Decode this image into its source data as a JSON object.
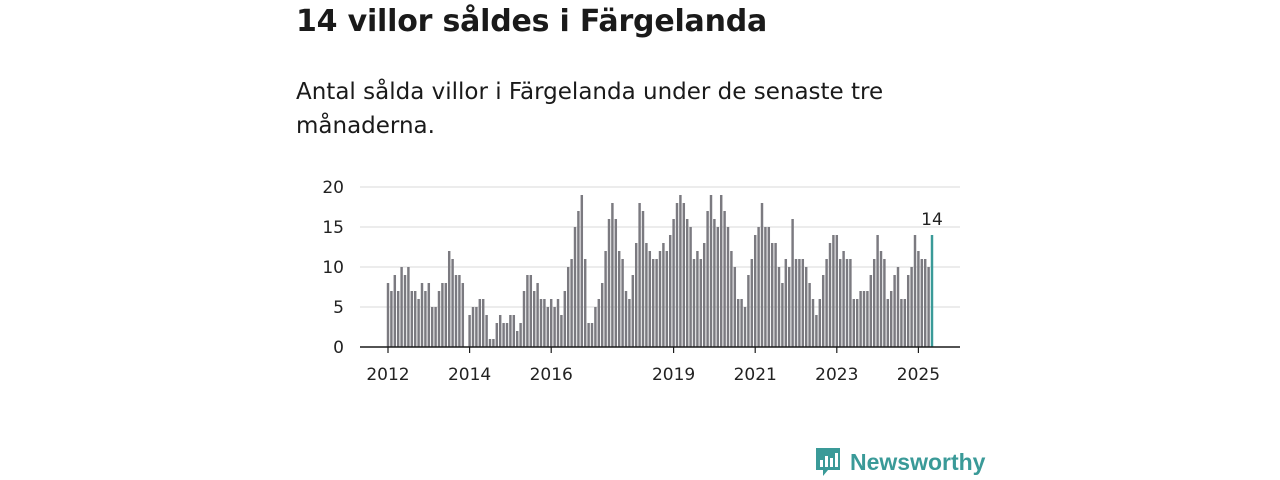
{
  "header": {
    "title": "14 villor såldes i Färgelanda",
    "subtitle": "Antal sålda villor i Färgelanda under de senaste tre månaderna."
  },
  "brand": {
    "name": "Newsworthy",
    "color": "#3a9a98"
  },
  "chart_data": {
    "type": "bar",
    "title": "14 villor såldes i Färgelanda",
    "ylabel": "",
    "xlabel": "",
    "ylim": [
      0,
      20
    ],
    "yticks": [
      0,
      5,
      10,
      15,
      20
    ],
    "xtick_labels": [
      {
        "label": "2012",
        "index": 0
      },
      {
        "label": "2014",
        "index": 24
      },
      {
        "label": "2016",
        "index": 48
      },
      {
        "label": "2019",
        "index": 84
      },
      {
        "label": "2021",
        "index": 108
      },
      {
        "label": "2023",
        "index": 132
      },
      {
        "label": "2025",
        "index": 156
      }
    ],
    "bar_color": "#7b7a80",
    "highlight_color": "#3a9a98",
    "highlight_label": "14",
    "values": [
      8,
      7,
      9,
      7,
      10,
      9,
      10,
      7,
      7,
      6,
      8,
      7,
      8,
      5,
      5,
      7,
      8,
      8,
      12,
      11,
      9,
      9,
      8,
      0,
      4,
      5,
      5,
      6,
      6,
      4,
      1,
      1,
      3,
      4,
      3,
      3,
      4,
      4,
      2,
      3,
      7,
      9,
      9,
      7,
      8,
      6,
      6,
      5,
      6,
      5,
      6,
      4,
      7,
      10,
      11,
      15,
      17,
      19,
      11,
      3,
      3,
      5,
      6,
      8,
      12,
      16,
      18,
      16,
      12,
      11,
      7,
      6,
      9,
      13,
      18,
      17,
      13,
      12,
      11,
      11,
      12,
      13,
      12,
      14,
      16,
      18,
      19,
      18,
      16,
      15,
      11,
      12,
      11,
      13,
      17,
      19,
      16,
      15,
      19,
      17,
      15,
      12,
      10,
      6,
      6,
      5,
      9,
      11,
      14,
      15,
      18,
      15,
      15,
      13,
      13,
      10,
      8,
      11,
      10,
      16,
      11,
      11,
      11,
      10,
      8,
      6,
      4,
      6,
      9,
      11,
      13,
      14,
      14,
      11,
      12,
      11,
      11,
      6,
      6,
      7,
      7,
      7,
      9,
      11,
      14,
      12,
      11,
      6,
      7,
      9,
      10,
      6,
      6,
      9,
      10,
      14,
      12,
      11,
      11,
      10,
      14
    ]
  }
}
